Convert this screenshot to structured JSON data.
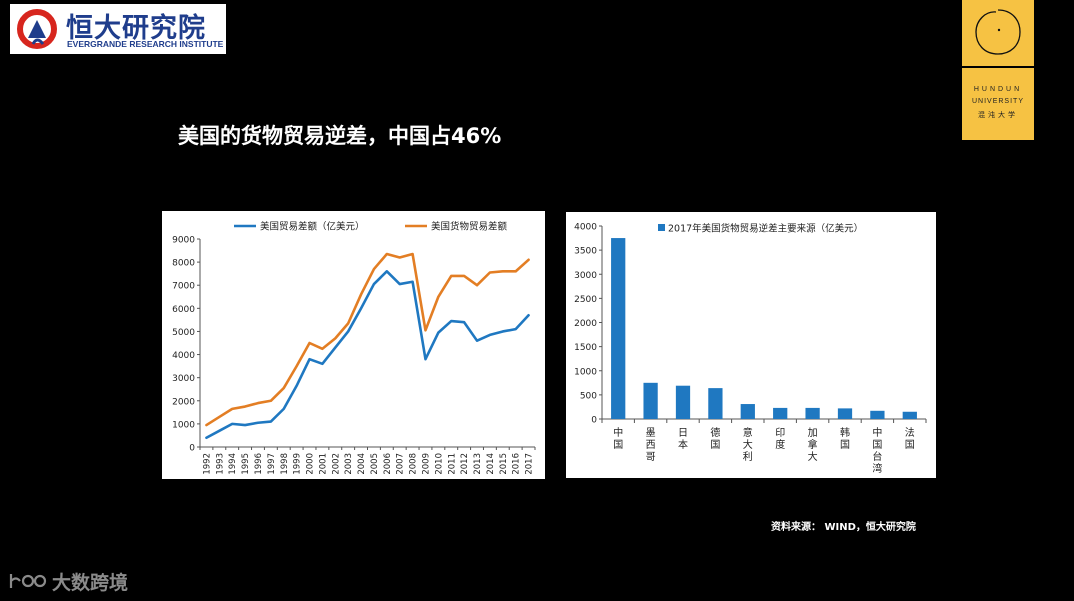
{
  "logo": {
    "name_cn": "恒大研究院",
    "name_en": "EVERGRANDE RESEARCH INSTITUTE",
    "brand_color": "#1f3d8c",
    "accent_color": "#d7261e"
  },
  "hundun": {
    "line1": "HUNDUN",
    "line2": "UNIVERSITY",
    "line3": "混沌大学",
    "bg_color": "#f6c243"
  },
  "slide": {
    "title": "美国的货物贸易逆差，中国占46%",
    "source": "资料来源： WIND，恒大研究院"
  },
  "watermark": {
    "text": "大数跨境"
  },
  "chart_data": [
    {
      "type": "line",
      "x": [
        "1992",
        "1993",
        "1994",
        "1995",
        "1996",
        "1997",
        "1998",
        "1999",
        "2000",
        "2001",
        "2002",
        "2003",
        "2004",
        "2005",
        "2006",
        "2007",
        "2008",
        "2009",
        "2010",
        "2011",
        "2012",
        "2013",
        "2014",
        "2015",
        "2016",
        "2017"
      ],
      "series": [
        {
          "name": "美国贸易差额（亿美元）",
          "color": "#1f78c1",
          "values": [
            400,
            700,
            1000,
            950,
            1050,
            1100,
            1650,
            2650,
            3800,
            3600,
            4300,
            5000,
            6000,
            7050,
            7600,
            7050,
            7150,
            3800,
            4950,
            5450,
            5400,
            4600,
            4850,
            5000,
            5100,
            5700
          ]
        },
        {
          "name": "美国货物贸易差额",
          "color": "#e37e24",
          "values": [
            950,
            1300,
            1650,
            1750,
            1900,
            2000,
            2550,
            3500,
            4500,
            4250,
            4700,
            5350,
            6600,
            7700,
            8350,
            8200,
            8350,
            5050,
            6500,
            7400,
            7400,
            7000,
            7550,
            7600,
            7600,
            8100
          ]
        }
      ],
      "ylim": [
        0,
        9000
      ],
      "yticks": [
        0,
        1000,
        2000,
        3000,
        4000,
        5000,
        6000,
        7000,
        8000,
        9000
      ],
      "legend_position": "top"
    },
    {
      "type": "bar",
      "title": "2017年美国货物贸易逆差主要来源（亿美元）",
      "categories": [
        "中国",
        "墨西哥",
        "日本",
        "德国",
        "意大利",
        "印度",
        "加拿大",
        "韩国",
        "中国台湾",
        "法国"
      ],
      "values": [
        3750,
        750,
        690,
        640,
        310,
        230,
        230,
        220,
        170,
        150
      ],
      "color": "#1f78c1",
      "ylim": [
        0,
        4000
      ],
      "yticks": [
        0,
        500,
        1000,
        1500,
        2000,
        2500,
        3000,
        3500,
        4000
      ],
      "legend_position": "top"
    }
  ]
}
